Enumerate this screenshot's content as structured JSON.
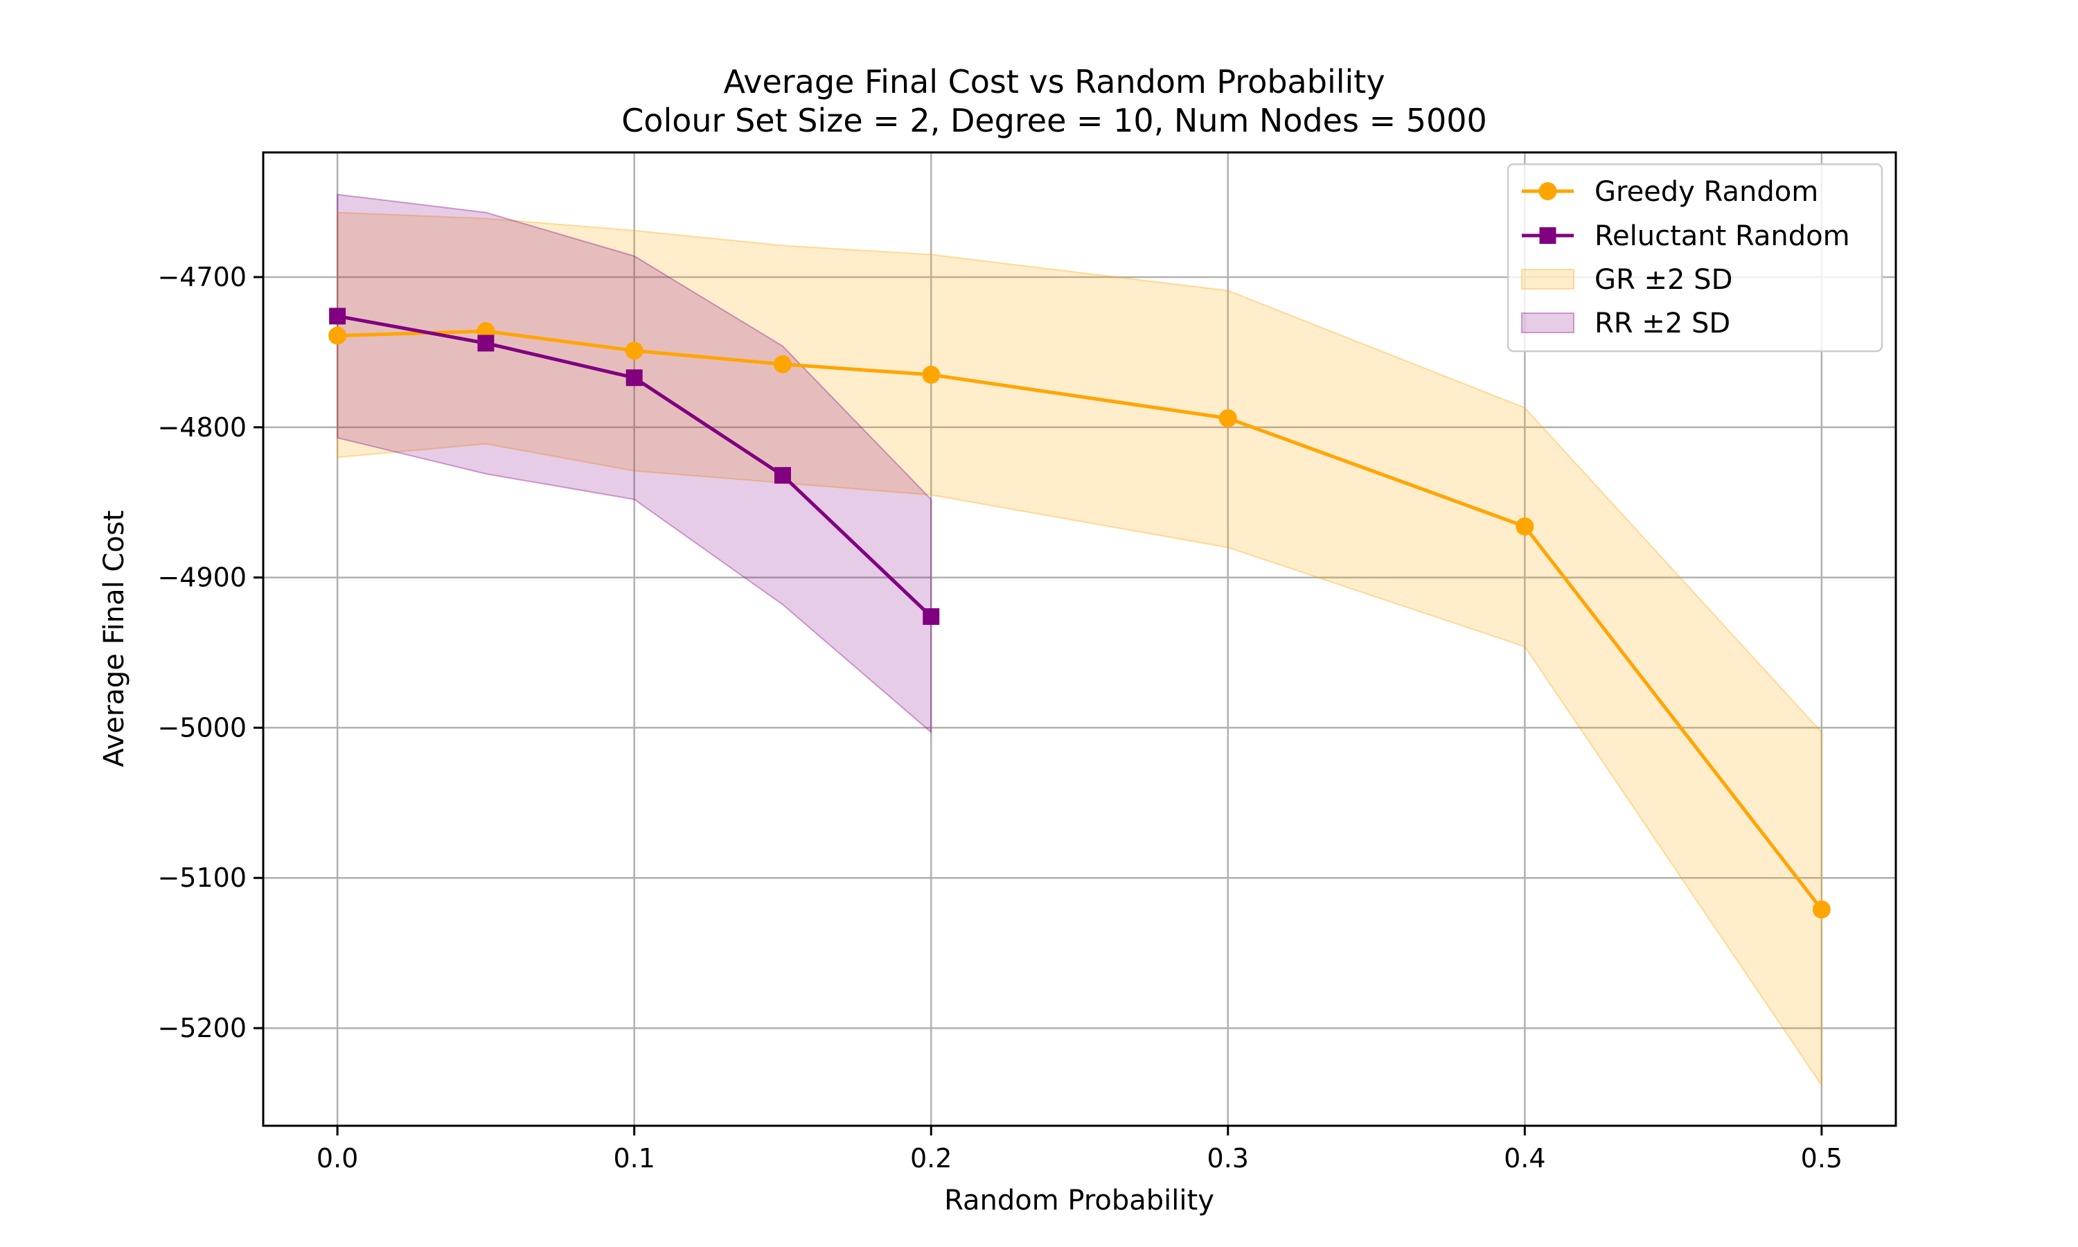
{
  "chart_data": {
    "type": "line",
    "title": "Average Final Cost vs Random Probability",
    "subtitle": "Colour Set Size = 2, Degree = 10, Num Nodes = 5000",
    "xlabel": "Random Probability",
    "ylabel": "Average Final Cost",
    "xlim": [
      -0.025,
      0.525
    ],
    "ylim": [
      -5265,
      -4617
    ],
    "xticks": [
      0.0,
      0.1,
      0.2,
      0.3,
      0.4,
      0.5
    ],
    "xtick_labels": [
      "0.0",
      "0.1",
      "0.2",
      "0.3",
      "0.4",
      "0.5"
    ],
    "yticks": [
      -4700,
      -4800,
      -4900,
      -5000,
      -5100,
      -5200
    ],
    "ytick_labels": [
      "−4700",
      "−4800",
      "−4900",
      "−5000",
      "−5100",
      "−5200"
    ],
    "grid": true,
    "legend_position": "top-right",
    "series": [
      {
        "name": "Greedy Random",
        "color": "#ffa500",
        "marker": "circle",
        "x": [
          0.0,
          0.05,
          0.1,
          0.15,
          0.2,
          0.3,
          0.4,
          0.5
        ],
        "y": [
          -4739,
          -4736,
          -4749,
          -4758,
          -4765,
          -4794,
          -4866,
          -5121
        ]
      },
      {
        "name": "Reluctant Random",
        "color": "#800080",
        "marker": "square",
        "x": [
          0.0,
          0.05,
          0.1,
          0.15,
          0.2
        ],
        "y": [
          -4726,
          -4744,
          -4767,
          -4832,
          -4926
        ]
      }
    ],
    "bands": [
      {
        "name": "GR ±2 SD",
        "color": "#ffa500",
        "opacity": 0.2,
        "x": [
          0.0,
          0.05,
          0.1,
          0.15,
          0.2,
          0.3,
          0.4,
          0.5
        ],
        "upper": [
          -4657,
          -4661,
          -4669,
          -4679,
          -4685,
          -4709,
          -4787,
          -5003
        ],
        "lower": [
          -4820,
          -4811,
          -4829,
          -4837,
          -4845,
          -4880,
          -4946,
          -5238
        ]
      },
      {
        "name": "RR ±2 SD",
        "color": "#800080",
        "opacity": 0.2,
        "x": [
          0.0,
          0.05,
          0.1,
          0.15,
          0.2
        ],
        "upper": [
          -4645,
          -4657,
          -4686,
          -4746,
          -4848
        ],
        "lower": [
          -4807,
          -4831,
          -4848,
          -4918,
          -5003
        ]
      }
    ]
  }
}
